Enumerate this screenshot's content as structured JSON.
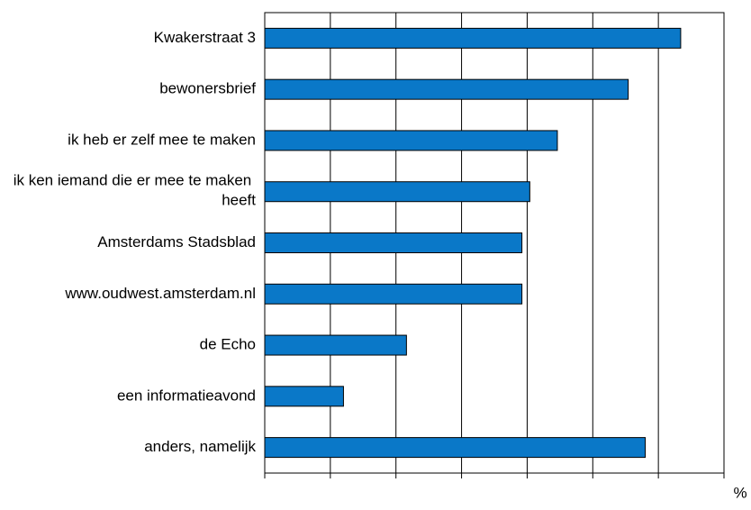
{
  "chart_data": {
    "type": "bar",
    "orientation": "horizontal",
    "categories": [
      "Kwakerstraat 3",
      "bewonersbrief",
      "ik heb er zelf mee te maken",
      "ik ken iemand die er mee te maken heeft",
      "Amsterdams Stadsblad",
      "www.oudwest.amsterdam.nl",
      "de Echo",
      "een informatieavond",
      "anders, namelijk"
    ],
    "values": [
      31.7,
      27.7,
      22.3,
      20.2,
      19.6,
      19.6,
      10.8,
      6.0,
      29.0
    ],
    "color": "#0a78c8",
    "xlabel": "%",
    "xlim": [
      0,
      35
    ],
    "xticks": [
      0,
      5,
      10,
      15,
      20,
      25,
      30,
      35
    ],
    "grid": true
  }
}
